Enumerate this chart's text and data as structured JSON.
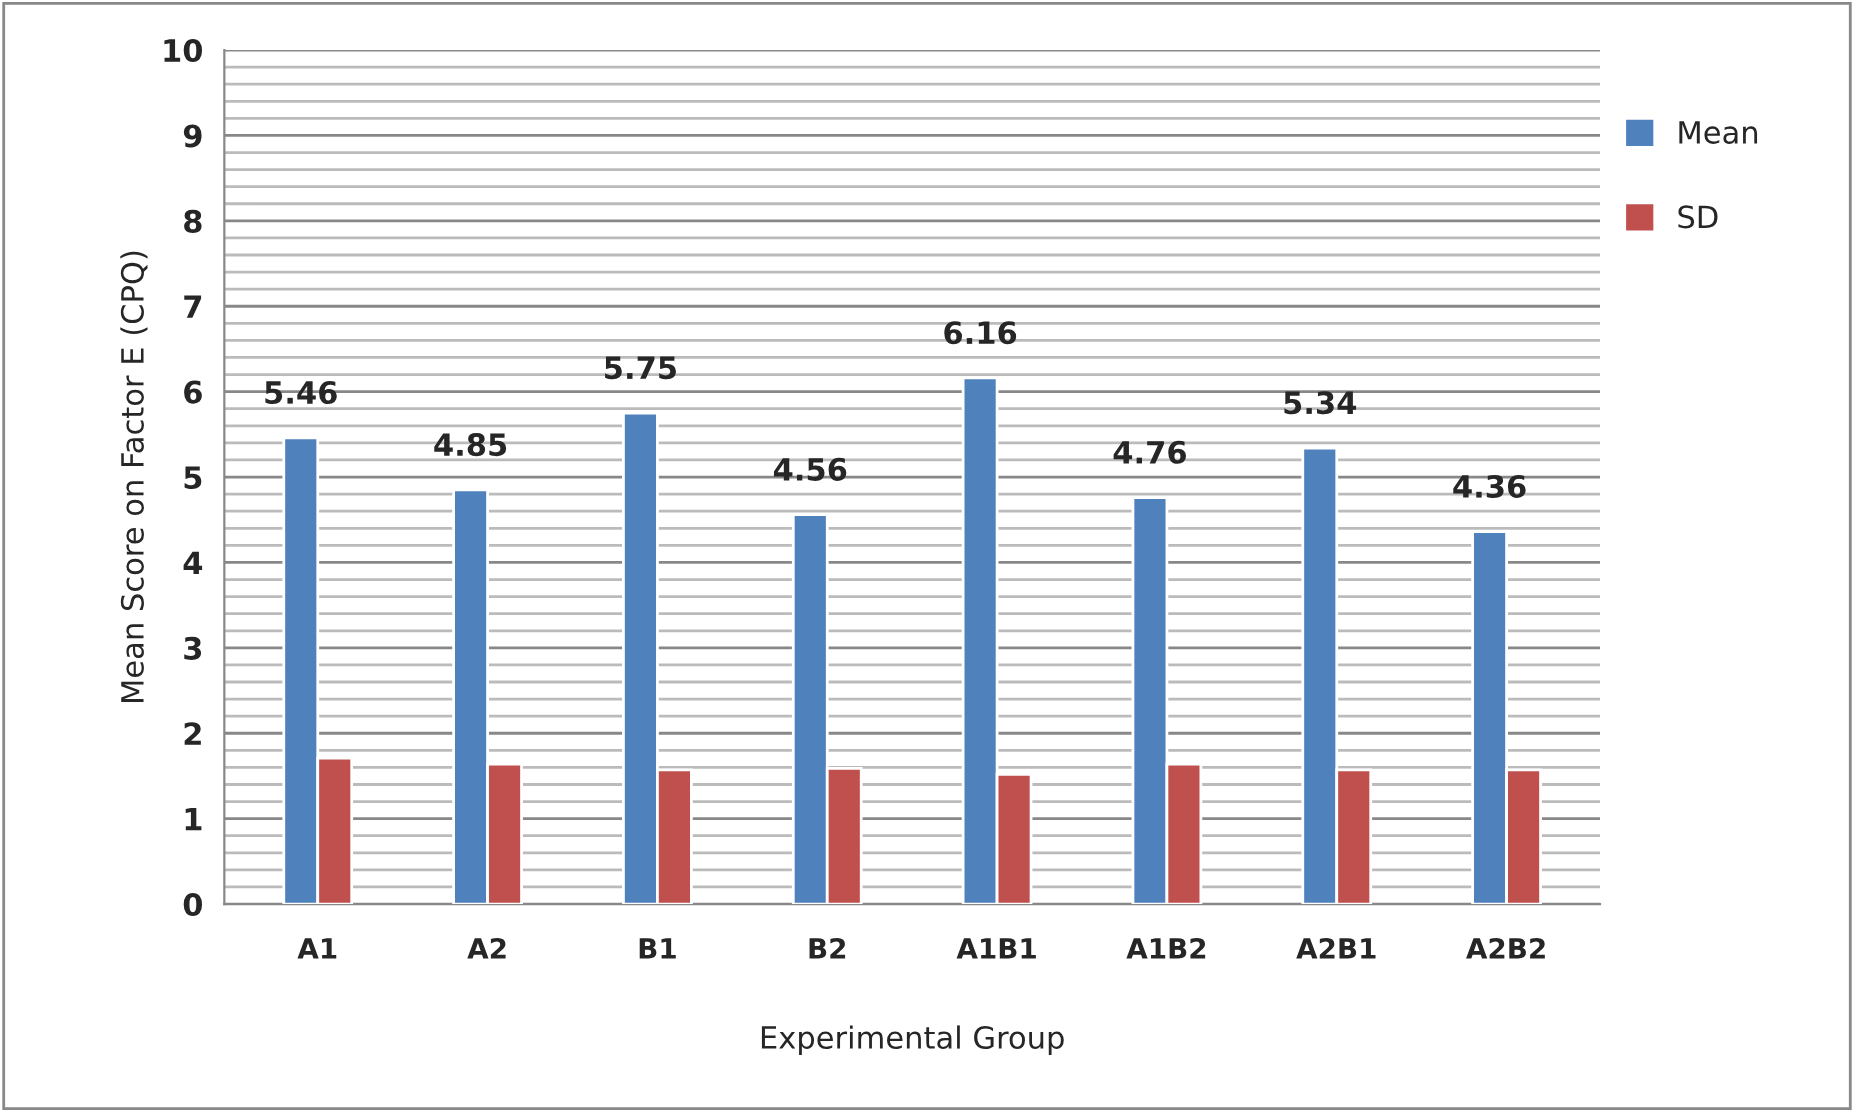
{
  "chart_data": {
    "type": "bar",
    "xlabel": "Experimental Group",
    "ylabel": "Mean Score on Factor E (CPQ)",
    "categories": [
      "A1",
      "A2",
      "B1",
      "B2",
      "A1B1",
      "A1B2",
      "A2B1",
      "A2B2"
    ],
    "series": [
      {
        "name": "Mean",
        "color": "#4f81bd",
        "values": [
          5.46,
          4.85,
          5.75,
          4.56,
          6.16,
          4.76,
          5.34,
          4.36
        ],
        "value_labels": [
          "5.46",
          "4.85",
          "5.75",
          "4.56",
          "6.16",
          "4.76",
          "5.34",
          "4.36"
        ]
      },
      {
        "name": "SD",
        "color": "#c0504d",
        "values": [
          1.71,
          1.64,
          1.57,
          1.59,
          1.52,
          1.64,
          1.57,
          1.57
        ]
      }
    ],
    "ylim": [
      0,
      10
    ],
    "yticks": [
      0,
      {
        "value": 0.2,
        "label": null
      },
      {
        "value": 0.4,
        "label": null
      },
      {
        "value": 0.6,
        "label": null
      },
      {
        "value": 0.8,
        "label": null
      },
      1,
      {
        "value": 1.2,
        "label": null
      },
      {
        "value": 1.4,
        "label": null
      },
      {
        "value": 1.6,
        "label": null
      },
      {
        "value": 1.8,
        "label": null
      },
      2,
      {
        "value": 2.2,
        "label": null
      },
      {
        "value": 2.4,
        "label": null
      },
      {
        "value": 2.6,
        "label": null
      },
      {
        "value": 2.8,
        "label": null
      },
      3,
      {
        "value": 3.2,
        "label": null
      },
      {
        "value": 3.4,
        "label": null
      },
      {
        "value": 3.6,
        "label": null
      },
      {
        "value": 3.8,
        "label": null
      },
      4,
      {
        "value": 4.2,
        "label": null
      },
      {
        "value": 4.4,
        "label": null
      },
      {
        "value": 4.6,
        "label": null
      },
      {
        "value": 4.8,
        "label": null
      },
      5,
      {
        "value": 5.2,
        "label": null
      },
      {
        "value": 5.4,
        "label": null
      },
      {
        "value": 5.6,
        "label": null
      },
      {
        "value": 5.8,
        "label": null
      },
      6,
      {
        "value": 6.2,
        "label": null
      },
      {
        "value": 6.4,
        "label": null
      },
      {
        "value": 6.6,
        "label": null
      },
      {
        "value": 6.8,
        "label": null
      },
      7,
      {
        "value": 7.2,
        "label": null
      },
      {
        "value": 7.4,
        "label": null
      },
      {
        "value": 7.6,
        "label": null
      },
      {
        "value": 7.8,
        "label": null
      },
      8,
      {
        "value": 8.2,
        "label": null
      },
      {
        "value": 8.4,
        "label": null
      },
      {
        "value": 8.6,
        "label": null
      },
      {
        "value": 8.8,
        "label": null
      },
      9,
      {
        "value": 9.2,
        "label": null
      },
      {
        "value": 9.4,
        "label": null
      },
      {
        "value": 9.6,
        "label": null
      },
      {
        "value": 9.8,
        "label": null
      },
      10
    ],
    "grid": "y",
    "legend": "top right"
  }
}
